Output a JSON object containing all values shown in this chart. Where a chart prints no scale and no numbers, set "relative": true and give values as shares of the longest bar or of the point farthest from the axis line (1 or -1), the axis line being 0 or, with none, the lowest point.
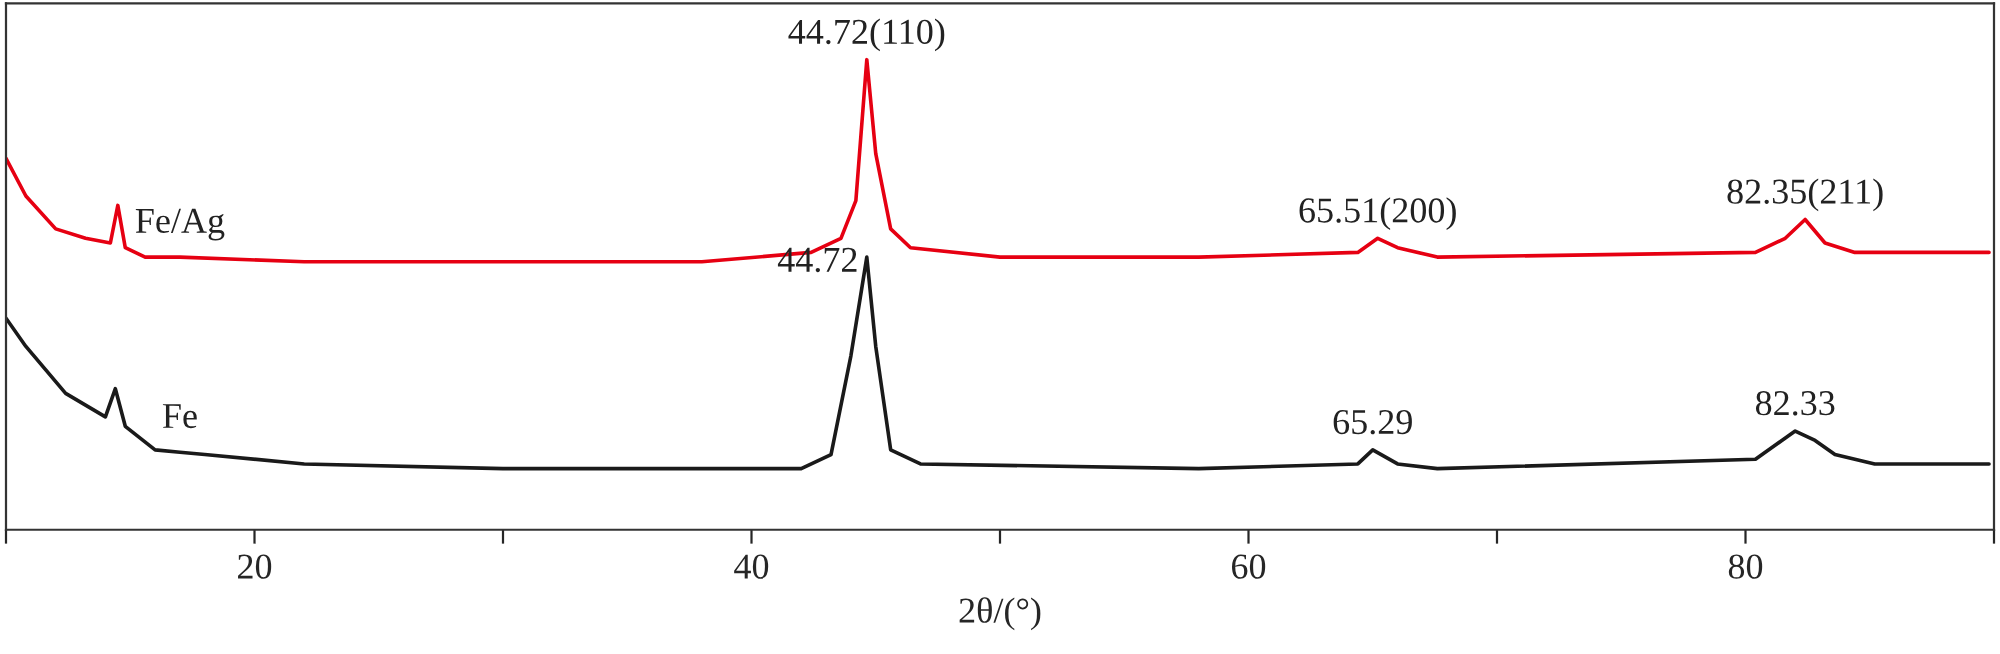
{
  "chart_data": {
    "type": "line",
    "relative": true,
    "xlabel": "2θ/(°)",
    "xlim": [
      10,
      90
    ],
    "xticks": [
      {
        "value": 10,
        "label": null
      },
      20,
      {
        "value": 30,
        "label": null
      },
      40,
      {
        "value": 50,
        "label": null
      },
      60,
      {
        "value": 70,
        "label": null
      },
      80,
      {
        "value": 90,
        "label": null
      }
    ],
    "tick_labels": "x",
    "grid": false,
    "legend": false,
    "marker": "none",
    "line_style": "solid",
    "series": [
      {
        "name": "Fe/Ag",
        "color": "#e60012",
        "x": [
          10,
          10.8,
          12,
          13.2,
          14.2,
          14.5,
          14.8,
          15.6,
          17,
          22,
          30,
          38,
          42.4,
          43.6,
          44.2,
          44.64,
          45.0,
          45.6,
          46.4,
          50,
          58,
          64.4,
          65.2,
          66,
          67.6,
          80.4,
          81.6,
          82.4,
          83.2,
          84.4,
          89.8
        ],
        "values": [
          0.79,
          0.71,
          0.64,
          0.62,
          0.61,
          0.69,
          0.6,
          0.58,
          0.58,
          0.57,
          0.57,
          0.57,
          0.59,
          0.62,
          0.7,
          1.0,
          0.8,
          0.64,
          0.6,
          0.58,
          0.58,
          0.59,
          0.62,
          0.6,
          0.58,
          0.59,
          0.62,
          0.66,
          0.61,
          0.59,
          0.59
        ]
      },
      {
        "name": "Fe",
        "color": "#1a1a1a",
        "x": [
          10,
          10.8,
          12.4,
          14,
          14.4,
          14.8,
          16,
          17,
          18,
          22,
          30,
          42,
          43.2,
          44,
          44.64,
          45,
          45.6,
          46.8,
          58,
          64.4,
          65,
          66,
          67.6,
          80.4,
          82,
          82.8,
          83.6,
          85.2,
          89.8
        ],
        "values": [
          0.45,
          0.39,
          0.29,
          0.24,
          0.3,
          0.22,
          0.17,
          0.165,
          0.16,
          0.14,
          0.13,
          0.13,
          0.16,
          0.37,
          0.58,
          0.39,
          0.17,
          0.14,
          0.13,
          0.14,
          0.17,
          0.14,
          0.13,
          0.15,
          0.21,
          0.19,
          0.16,
          0.14,
          0.14
        ]
      }
    ],
    "annotations": [
      {
        "text": "44.72(110)",
        "x": 44.64,
        "y": 1.0
      },
      {
        "text": "65.51(200)",
        "x": 65.2,
        "y": 0.62
      },
      {
        "text": "82.35(211)",
        "x": 82.4,
        "y": 0.66
      },
      {
        "text": "44.72",
        "x": 44.64,
        "y": 0.58
      },
      {
        "text": "65.29",
        "x": 65,
        "y": 0.17
      },
      {
        "text": "82.33",
        "x": 82,
        "y": 0.21
      }
    ]
  }
}
